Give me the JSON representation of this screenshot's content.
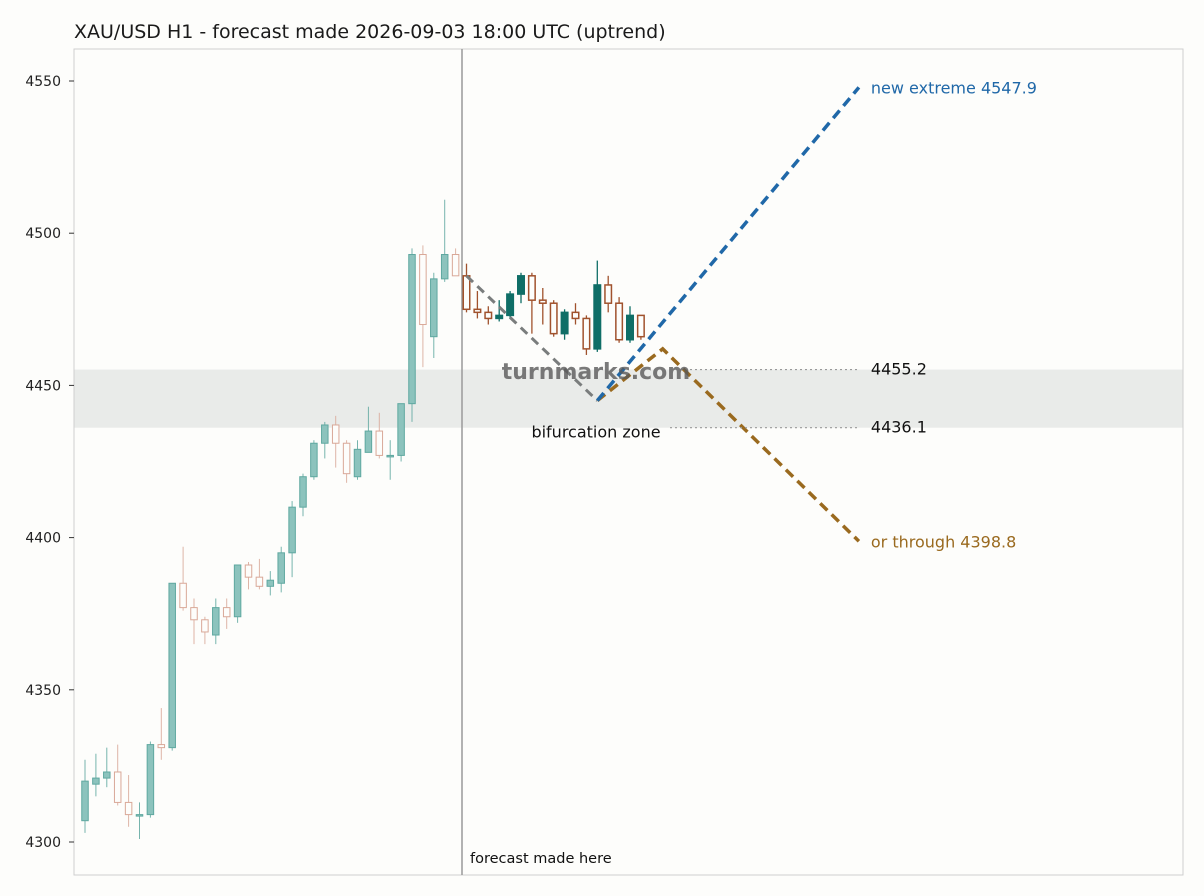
{
  "chart_data": {
    "type": "candlestick",
    "title": "XAU/USD H1 - forecast made 2026-09-03 18:00 UTC (uptrend)",
    "ylim": [
      4290,
      4560
    ],
    "yticks": [
      4300,
      4350,
      4400,
      4450,
      4500,
      4550
    ],
    "grid": false,
    "history_candles": [
      {
        "o": 4307,
        "h": 4327,
        "l": 4303,
        "c": 4320
      },
      {
        "o": 4319,
        "h": 4329,
        "l": 4315,
        "c": 4321
      },
      {
        "o": 4321,
        "h": 4331,
        "l": 4318,
        "c": 4323
      },
      {
        "o": 4323,
        "h": 4332,
        "l": 4312,
        "c": 4313
      },
      {
        "o": 4313,
        "h": 4322,
        "l": 4305,
        "c": 4309
      },
      {
        "o": 4309,
        "h": 4313,
        "l": 4301,
        "c": 4309
      },
      {
        "o": 4309,
        "h": 4333,
        "l": 4308,
        "c": 4332
      },
      {
        "o": 4332,
        "h": 4344,
        "l": 4327,
        "c": 4331
      },
      {
        "o": 4331,
        "h": 4385,
        "l": 4330,
        "c": 4385
      },
      {
        "o": 4385,
        "h": 4397,
        "l": 4376,
        "c": 4377
      },
      {
        "o": 4377,
        "h": 4380,
        "l": 4365,
        "c": 4373
      },
      {
        "o": 4373,
        "h": 4374,
        "l": 4365,
        "c": 4369
      },
      {
        "o": 4368,
        "h": 4380,
        "l": 4365,
        "c": 4377
      },
      {
        "o": 4377,
        "h": 4380,
        "l": 4370,
        "c": 4374
      },
      {
        "o": 4374,
        "h": 4391,
        "l": 4372,
        "c": 4391
      },
      {
        "o": 4391,
        "h": 4392,
        "l": 4383,
        "c": 4387
      },
      {
        "o": 4387,
        "h": 4393,
        "l": 4383,
        "c": 4384
      },
      {
        "o": 4384,
        "h": 4389,
        "l": 4381,
        "c": 4386
      },
      {
        "o": 4385,
        "h": 4397,
        "l": 4382,
        "c": 4395
      },
      {
        "o": 4395,
        "h": 4412,
        "l": 4387,
        "c": 4410
      },
      {
        "o": 4410,
        "h": 4421,
        "l": 4407,
        "c": 4420
      },
      {
        "o": 4420,
        "h": 4432,
        "l": 4419,
        "c": 4431
      },
      {
        "o": 4431,
        "h": 4438,
        "l": 4426,
        "c": 4437
      },
      {
        "o": 4437,
        "h": 4440,
        "l": 4423,
        "c": 4431
      },
      {
        "o": 4431,
        "h": 4432,
        "l": 4418,
        "c": 4421
      },
      {
        "o": 4420,
        "h": 4432,
        "l": 4419,
        "c": 4429
      },
      {
        "o": 4428,
        "h": 4443,
        "l": 4428,
        "c": 4435
      },
      {
        "o": 4435,
        "h": 4441,
        "l": 4426,
        "c": 4427
      },
      {
        "o": 4427,
        "h": 4432,
        "l": 4419,
        "c": 4427
      },
      {
        "o": 4427,
        "h": 4444,
        "l": 4425,
        "c": 4444
      },
      {
        "o": 4444,
        "h": 4495,
        "l": 4438,
        "c": 4493
      },
      {
        "o": 4493,
        "h": 4496,
        "l": 4456,
        "c": 4470
      },
      {
        "o": 4466,
        "h": 4487,
        "l": 4459,
        "c": 4485
      },
      {
        "o": 4485,
        "h": 4511,
        "l": 4484,
        "c": 4493
      },
      {
        "o": 4493,
        "h": 4495,
        "l": 4486,
        "c": 4486
      }
    ],
    "forecast_candles": [
      {
        "o": 4486,
        "h": 4490,
        "l": 4474,
        "c": 4475
      },
      {
        "o": 4475,
        "h": 4481,
        "l": 4472,
        "c": 4474
      },
      {
        "o": 4474,
        "h": 4476,
        "l": 4470,
        "c": 4472
      },
      {
        "o": 4472,
        "h": 4478,
        "l": 4471,
        "c": 4473
      },
      {
        "o": 4473,
        "h": 4481,
        "l": 4472,
        "c": 4480
      },
      {
        "o": 4480,
        "h": 4487,
        "l": 4477,
        "c": 4486
      },
      {
        "o": 4486,
        "h": 4487,
        "l": 4467,
        "c": 4478
      },
      {
        "o": 4478,
        "h": 4482,
        "l": 4470,
        "c": 4477
      },
      {
        "o": 4477,
        "h": 4478,
        "l": 4466,
        "c": 4467
      },
      {
        "o": 4467,
        "h": 4475,
        "l": 4465,
        "c": 4474
      },
      {
        "o": 4474,
        "h": 4477,
        "l": 4470,
        "c": 4472
      },
      {
        "o": 4472,
        "h": 4473,
        "l": 4460,
        "c": 4462
      },
      {
        "o": 4462,
        "h": 4491,
        "l": 4461,
        "c": 4483
      },
      {
        "o": 4483,
        "h": 4486,
        "l": 4474,
        "c": 4477
      },
      {
        "o": 4477,
        "h": 4479,
        "l": 4464,
        "c": 4465
      },
      {
        "o": 4465,
        "h": 4476,
        "l": 4464,
        "c": 4473
      },
      {
        "o": 4473,
        "h": 4473,
        "l": 4465,
        "c": 4466
      }
    ],
    "zone": {
      "high": 4455.2,
      "low": 4436.1,
      "label": "bifurcation zone",
      "high_label": "4455.2",
      "low_label": "4436.1"
    },
    "path_to_zone": [
      [
        35,
        4486
      ],
      [
        47,
        4445
      ]
    ],
    "scenario_up": {
      "points": [
        [
          47,
          4445
        ],
        [
          71,
          4547.9
        ]
      ],
      "label": "new extreme 4547.9",
      "color": "#2068a8"
    },
    "scenario_down": {
      "points": [
        [
          47,
          4445
        ],
        [
          53,
          4462
        ],
        [
          71,
          4398.8
        ]
      ],
      "label": "or through 4398.8",
      "color": "#9a6a1f"
    },
    "forecast_start_index": 35,
    "forecast_marker_label": "forecast made here",
    "watermark": "turnmarks.com"
  },
  "colors": {
    "up": "#0f6e67",
    "down": "#a0522d",
    "hist_up_fill": "#8cc3bd",
    "hist_up_stroke": "#5fa8a0",
    "hist_down_stroke": "#d9a898",
    "zone": "#e9ebe9",
    "path_grey": "#7a7d7d"
  }
}
